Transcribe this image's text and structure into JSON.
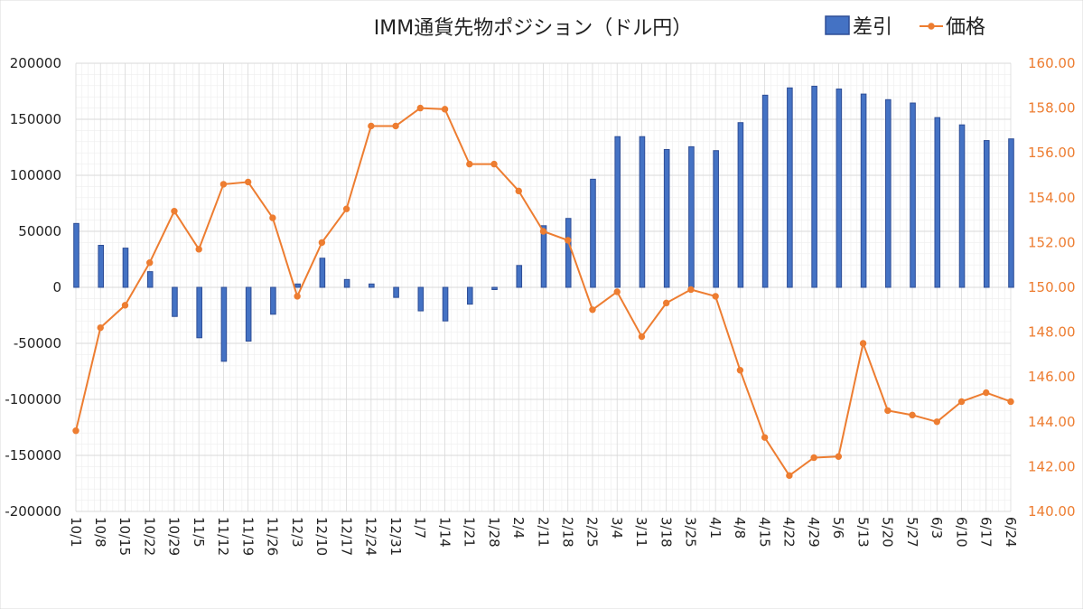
{
  "title": "IMM通貨先物ポジション（ドル円）",
  "colors": {
    "bar_fill": "#4472C4",
    "bar_edge": "#2F4E96",
    "line": "#ED7D31",
    "grid_major": "#D9D9D9",
    "grid_minor": "#EEEEEE",
    "left_tick": "#222222",
    "right_tick": "#ED7D31"
  },
  "chart_data": {
    "type": "bar",
    "title": "IMM通貨先物ポジション（ドル円）",
    "legend_position": "top-right",
    "grid": true,
    "categories": [
      "10/1",
      "10/8",
      "10/15",
      "10/22",
      "10/29",
      "11/5",
      "11/12",
      "11/19",
      "11/26",
      "12/3",
      "12/10",
      "12/17",
      "12/24",
      "12/31",
      "1/7",
      "1/14",
      "1/21",
      "1/28",
      "2/4",
      "2/11",
      "2/18",
      "2/25",
      "3/4",
      "3/11",
      "3/18",
      "3/25",
      "4/1",
      "4/8",
      "4/15",
      "4/22",
      "4/29",
      "5/6",
      "5/13",
      "5/20",
      "5/27",
      "6/3",
      "6/10",
      "6/17",
      "6/24"
    ],
    "left_axis": {
      "min": -200000,
      "max": 200000,
      "step": 50000,
      "tick_labels": [
        "200000",
        "150000",
        "100000",
        "50000",
        "0",
        "-50000",
        "-100000",
        "-150000",
        "-200000"
      ]
    },
    "right_axis": {
      "min": 140,
      "max": 160,
      "step": 2,
      "tick_labels": [
        "160.00",
        "158.00",
        "156.00",
        "154.00",
        "152.00",
        "150.00",
        "148.00",
        "146.00",
        "144.00",
        "142.00",
        "140.00"
      ]
    },
    "series": [
      {
        "name": "差引",
        "type": "bar",
        "axis": "left",
        "values": [
          57000,
          37500,
          35000,
          14000,
          -26000,
          -45000,
          -66000,
          -48000,
          -24000,
          3000,
          26000,
          7000,
          3000,
          -9000,
          -21000,
          -30000,
          -15000,
          -2000,
          19500,
          55000,
          61500,
          96500,
          134500,
          134500,
          123000,
          125500,
          122000,
          147000,
          171500,
          178000,
          179500,
          177000,
          172500,
          167500,
          164500,
          151500,
          145000,
          131000,
          132500
        ]
      },
      {
        "name": "価格",
        "type": "line",
        "axis": "right",
        "values": [
          143.6,
          148.2,
          149.2,
          151.1,
          153.4,
          151.7,
          154.6,
          154.7,
          153.1,
          149.6,
          152.0,
          153.5,
          157.2,
          157.2,
          158.0,
          157.95,
          155.5,
          155.5,
          154.3,
          152.5,
          152.1,
          149.0,
          149.8,
          147.8,
          149.3,
          149.9,
          149.6,
          146.3,
          143.3,
          141.6,
          142.4,
          142.45,
          147.5,
          144.5,
          144.3,
          144.0,
          144.9,
          145.3,
          144.9
        ]
      }
    ]
  }
}
